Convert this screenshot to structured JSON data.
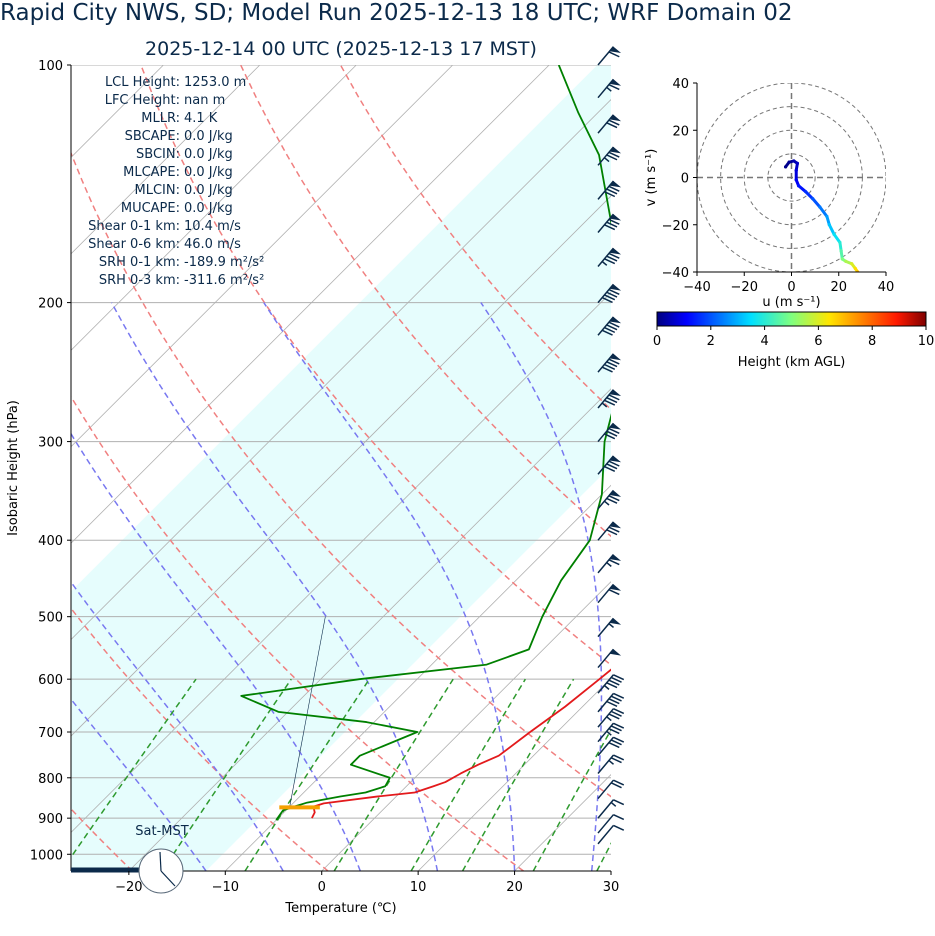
{
  "header": {
    "title": "Rapid City NWS, SD; Model Run 2025-12-13 18 UTC; WRF Domain 02",
    "subtitle": "2025-12-14 00 UTC  (2025-12-13 17 MST)"
  },
  "indices": [
    {
      "label": "LCL Height:",
      "value": "1253.0 m"
    },
    {
      "label": "LFC Height:",
      "value": "nan m"
    },
    {
      "label": "MLLR:",
      "value": "4.1 K"
    },
    {
      "label": "SBCAPE:",
      "value": "0.0 J/kg"
    },
    {
      "label": "SBCIN:",
      "value": "0.0 J/kg"
    },
    {
      "label": "MLCAPE:",
      "value": "0.0 J/kg"
    },
    {
      "label": "MLCIN:",
      "value": "0.0 J/kg"
    },
    {
      "label": "MUCAPE:",
      "value": "0.0 J/kg"
    },
    {
      "label": "Shear 0-1 km:",
      "value": "10.4 m/s"
    },
    {
      "label": "Shear 0-6 km:",
      "value": "46.0 m/s"
    },
    {
      "label": "SRH 0-1 km:",
      "value": "-189.9 m²/s²"
    },
    {
      "label": "SRH 0-3 km:",
      "value": "-311.6 m²/s²"
    }
  ],
  "clock_label": "Sat-MST",
  "chart_data": [
    {
      "type": "line",
      "name": "skew-t",
      "xlabel": "Temperature (℃)",
      "ylabel": "Isobaric Height (hPa)",
      "xlim": [
        -26,
        30
      ],
      "ylim": [
        1050,
        100
      ],
      "y_scale": "log",
      "xticks": [
        -20,
        -10,
        0,
        10,
        20,
        30
      ],
      "yticks": [
        100,
        200,
        300,
        400,
        500,
        600,
        700,
        800,
        900,
        1000
      ],
      "skew": true,
      "grid": true,
      "series": [
        {
          "color": "#e31a1c",
          "p": [
            900,
            885,
            875,
            870,
            862,
            845,
            835,
            820,
            810,
            790,
            770,
            750,
            700,
            650,
            600,
            550,
            500,
            450,
            400,
            350,
            300,
            250,
            225,
            200,
            180,
            150,
            120,
            100
          ],
          "t": [
            -6.5,
            -6.8,
            -7.3,
            -7.5,
            -6.8,
            -2.0,
            1.5,
            2.8,
            3.6,
            4.3,
            5.2,
            6.4,
            7.2,
            8.2,
            8.9,
            9.6,
            10.2,
            9.4,
            7.6,
            4.6,
            0.4,
            -4.4,
            -7.6,
            -11.2,
            -13.2,
            -12.2,
            -11.8,
            -14.0
          ]
        },
        {
          "color": "#008000",
          "p": [
            905,
            880,
            870,
            860,
            845,
            835,
            820,
            800,
            770,
            750,
            700,
            680,
            660,
            630,
            600,
            575,
            550,
            500,
            450,
            400,
            350,
            325,
            300,
            250,
            225,
            200,
            180,
            165,
            150,
            130,
            115,
            100
          ],
          "t": [
            -10.0,
            -10.3,
            -9.5,
            -8.6,
            -5.8,
            -3.6,
            -2.2,
            -2.6,
            -8.0,
            -8.0,
            -4.5,
            -10.8,
            -21.0,
            -26.5,
            -16.0,
            -4.3,
            -1.5,
            -3.5,
            -5.3,
            -6.5,
            -10.0,
            -12.5,
            -15.2,
            -20.0,
            -23.5,
            -28.0,
            -32.0,
            -35.5,
            -39.5,
            -45.5,
            -52.0,
            -59.0
          ]
        },
        {
          "color": "#f5a000",
          "p": [
            872,
            872
          ],
          "t": [
            -11.0,
            -6.8
          ]
        }
      ],
      "dry_adiabats_theta_K": [
        250,
        270,
        290,
        310,
        330,
        350,
        370
      ],
      "moist_adiabats_start_C": [
        -12,
        -4,
        4,
        12,
        20,
        28
      ],
      "mixing_ratios_gkg": [
        0.4,
        1,
        2,
        4,
        7,
        10,
        16,
        24
      ],
      "barbs": [
        {
          "p": 100,
          "kt": 60
        },
        {
          "p": 110,
          "kt": 65
        },
        {
          "p": 122,
          "kt": 70
        },
        {
          "p": 134,
          "kt": 75
        },
        {
          "p": 148,
          "kt": 80
        },
        {
          "p": 163,
          "kt": 80
        },
        {
          "p": 180,
          "kt": 85
        },
        {
          "p": 200,
          "kt": 90
        },
        {
          "p": 220,
          "kt": 90
        },
        {
          "p": 245,
          "kt": 90
        },
        {
          "p": 272,
          "kt": 85
        },
        {
          "p": 300,
          "kt": 80
        },
        {
          "p": 330,
          "kt": 80
        },
        {
          "p": 365,
          "kt": 75
        },
        {
          "p": 400,
          "kt": 70
        },
        {
          "p": 440,
          "kt": 65
        },
        {
          "p": 480,
          "kt": 60
        },
        {
          "p": 530,
          "kt": 55
        },
        {
          "p": 580,
          "kt": 50
        },
        {
          "p": 625,
          "kt": 45
        },
        {
          "p": 660,
          "kt": 40
        },
        {
          "p": 690,
          "kt": 35
        },
        {
          "p": 720,
          "kt": 35
        },
        {
          "p": 750,
          "kt": 30
        },
        {
          "p": 790,
          "kt": 25
        },
        {
          "p": 850,
          "kt": 20
        },
        {
          "p": 900,
          "kt": 15
        },
        {
          "p": 940,
          "kt": 10
        },
        {
          "p": 970,
          "kt": 10
        }
      ]
    },
    {
      "type": "scatter",
      "name": "hodograph",
      "xlabel": "u (m s⁻¹)",
      "ylabel": "v (m s⁻¹)",
      "xlim": [
        -40,
        40
      ],
      "ylim": [
        -40,
        40
      ],
      "xticks": [
        -40,
        -20,
        0,
        20,
        40
      ],
      "yticks": [
        -40,
        -20,
        0,
        20,
        40
      ],
      "ring_radii": [
        10,
        20,
        30,
        40
      ],
      "colorbar": {
        "label": "Height (km AGL)",
        "min": 0,
        "max": 10,
        "ticks": [
          0,
          2,
          4,
          6,
          8,
          10
        ]
      },
      "points": [
        {
          "u": -2.5,
          "v": 4.5,
          "h": 0.1
        },
        {
          "u": -1.0,
          "v": 6.5,
          "h": 0.2
        },
        {
          "u": 1.0,
          "v": 7.0,
          "h": 0.4
        },
        {
          "u": 2.5,
          "v": 6.0,
          "h": 0.6
        },
        {
          "u": 2.0,
          "v": 3.0,
          "h": 0.8
        },
        {
          "u": 2.0,
          "v": -1.0,
          "h": 1.0
        },
        {
          "u": 3.0,
          "v": -3.5,
          "h": 1.3
        },
        {
          "u": 6.0,
          "v": -6.0,
          "h": 1.6
        },
        {
          "u": 9.0,
          "v": -9.0,
          "h": 2.0
        },
        {
          "u": 12.0,
          "v": -12.5,
          "h": 2.4
        },
        {
          "u": 15.0,
          "v": -16.5,
          "h": 2.8
        },
        {
          "u": 16.0,
          "v": -20.0,
          "h": 3.2
        },
        {
          "u": 18.0,
          "v": -24.0,
          "h": 3.6
        },
        {
          "u": 20.5,
          "v": -27.5,
          "h": 4.0
        },
        {
          "u": 21.0,
          "v": -31.0,
          "h": 4.5
        },
        {
          "u": 21.5,
          "v": -34.5,
          "h": 5.0
        },
        {
          "u": 23.0,
          "v": -35.5,
          "h": 5.5
        },
        {
          "u": 25.5,
          "v": -36.5,
          "h": 6.0
        },
        {
          "u": 27.0,
          "v": -38.5,
          "h": 6.5
        },
        {
          "u": 28.0,
          "v": -40.0,
          "h": 7.0
        }
      ]
    }
  ]
}
